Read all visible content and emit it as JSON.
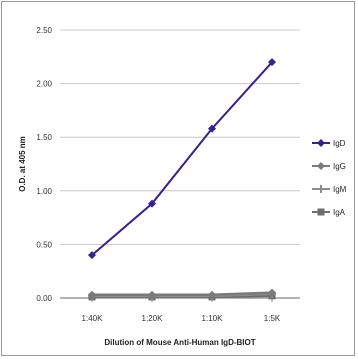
{
  "chart_data": {
    "type": "line",
    "categories": [
      "1:40K",
      "1:20K",
      "1:10K",
      "1:5K"
    ],
    "y_ticks": [
      "0.00",
      "0.50",
      "1.00",
      "1.50",
      "2.00",
      "2.50"
    ],
    "ylim": [
      0,
      2.5
    ],
    "xlabel": "Dilution of Mouse Anti-Human IgD-BIOT",
    "ylabel": "O.D. at 405 nm",
    "grid": "horizontal",
    "legend_position": "right",
    "series": [
      {
        "name": "IgD",
        "color": "#3a1f8f",
        "marker": "diamond",
        "values": [
          0.4,
          0.88,
          1.58,
          2.2
        ]
      },
      {
        "name": "IgG",
        "color": "#7a7a7a",
        "marker": "diamond",
        "values": [
          0.03,
          0.03,
          0.03,
          0.05
        ]
      },
      {
        "name": "IgM",
        "color": "#8c8c8c",
        "marker": "cross",
        "values": [
          0.02,
          0.02,
          0.02,
          0.04
        ]
      },
      {
        "name": "IgA",
        "color": "#6e6e6e",
        "marker": "square",
        "values": [
          0.01,
          0.01,
          0.01,
          0.02
        ]
      }
    ]
  }
}
